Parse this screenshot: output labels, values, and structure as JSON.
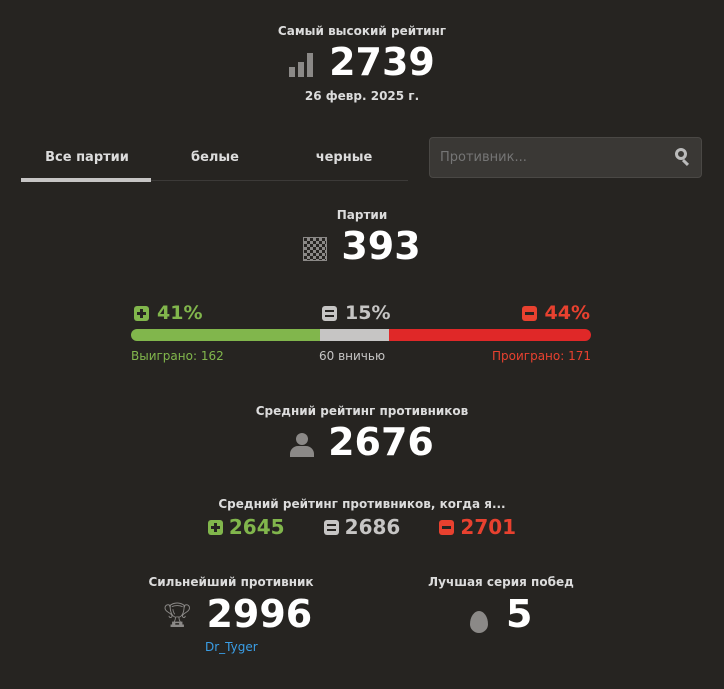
{
  "highest": {
    "label": "Самый высокий рейтинг",
    "value": "2739",
    "date": "26 февр. 2025 г."
  },
  "tabs": [
    {
      "label": "Все партии"
    },
    {
      "label": "белые"
    },
    {
      "label": "черные"
    }
  ],
  "search": {
    "placeholder": "Противник..."
  },
  "games": {
    "label": "Партии",
    "value": "393"
  },
  "results": {
    "win_pct": "41%",
    "draw_pct": "15%",
    "loss_pct": "44%",
    "win_text": "Выиграно: 162",
    "draw_text": "60 вничью",
    "loss_text": "Проиграно: 171",
    "win_frac": 0.41,
    "draw_frac": 0.15,
    "loss_frac": 0.44
  },
  "avg": {
    "label": "Средний рейтинг противников",
    "value": "2676"
  },
  "avg_when": {
    "label": "Средний рейтинг противников, когда я...",
    "win": "2645",
    "draw": "2686",
    "loss": "2701"
  },
  "strongest": {
    "label": "Сильнейший противник",
    "value": "2996",
    "name": "Dr_Tyger"
  },
  "streak": {
    "label": "Лучшая серия побед",
    "value": "5"
  },
  "colors": {
    "win": "#81b64c",
    "draw": "#c6c5c4",
    "loss": "#e02828",
    "link": "#3a9ee6"
  }
}
